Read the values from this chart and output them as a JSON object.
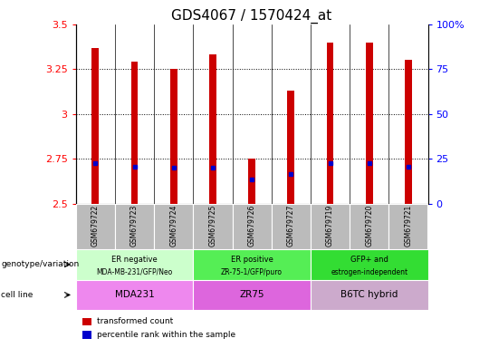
{
  "title": "GDS4067 / 1570424_at",
  "samples": [
    "GSM679722",
    "GSM679723",
    "GSM679724",
    "GSM679725",
    "GSM679726",
    "GSM679727",
    "GSM679719",
    "GSM679720",
    "GSM679721"
  ],
  "transformed_count": [
    3.37,
    3.29,
    3.25,
    3.33,
    2.75,
    3.13,
    3.4,
    3.4,
    3.3
  ],
  "percentile_rank_pct": [
    22.8,
    20.5,
    19.8,
    20.0,
    13.5,
    16.5,
    22.8,
    22.8,
    20.5
  ],
  "bar_bottom": 2.5,
  "ylim_left": [
    2.5,
    3.5
  ],
  "ylim_right": [
    0,
    100
  ],
  "yticks_left": [
    2.5,
    2.75,
    3.0,
    3.25,
    3.5
  ],
  "yticks_right": [
    0,
    25,
    50,
    75,
    100
  ],
  "ytick_labels_left": [
    "2.5",
    "2.75",
    "3",
    "3.25",
    "3.5"
  ],
  "ytick_labels_right": [
    "0",
    "25",
    "50",
    "75",
    "100%"
  ],
  "grid_lines": [
    2.75,
    3.0,
    3.25
  ],
  "bar_color": "#cc0000",
  "percentile_color": "#0000cc",
  "group1_cell": "MDA231",
  "group2_cell": "ZR75",
  "group3_cell": "B6TC hybrid",
  "genotype_bg1": "#ccffcc",
  "genotype_bg2": "#55ee55",
  "genotype_bg3": "#33dd33",
  "cell_bg1": "#ee88ee",
  "cell_bg2": "#dd66dd",
  "cell_bg3": "#ccaacc",
  "tick_area_bg": "#bbbbbb",
  "legend_red": "transformed count",
  "legend_blue": "percentile rank within the sample",
  "left_label_geno": "genotype/variation",
  "left_label_cell": "cell line",
  "title_fontsize": 11,
  "tick_fontsize": 8,
  "bar_width": 0.18
}
